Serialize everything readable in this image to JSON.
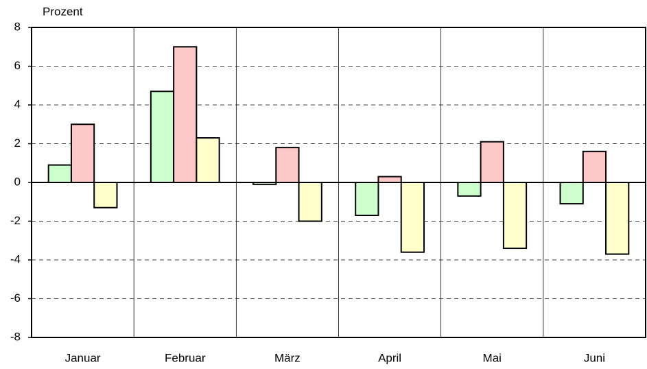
{
  "chart_data": {
    "type": "bar",
    "y_label": "Prozent",
    "categories": [
      "Januar",
      "Februar",
      "März",
      "April",
      "Mai",
      "Juni"
    ],
    "series": [
      {
        "color": "#ccffcc",
        "values": [
          0.9,
          4.7,
          -0.1,
          -1.7,
          -0.7,
          -1.1
        ]
      },
      {
        "color": "#ffc8c8",
        "values": [
          3.0,
          7.0,
          1.8,
          0.3,
          2.1,
          1.6
        ]
      },
      {
        "color": "#ffffcc",
        "values": [
          -1.3,
          2.3,
          -2.0,
          -3.6,
          -3.4,
          -3.7
        ]
      }
    ],
    "ylim": [
      -8,
      8
    ],
    "yticks": [
      -8,
      -6,
      -4,
      -2,
      0,
      2,
      4,
      6,
      8
    ],
    "grid": true
  }
}
